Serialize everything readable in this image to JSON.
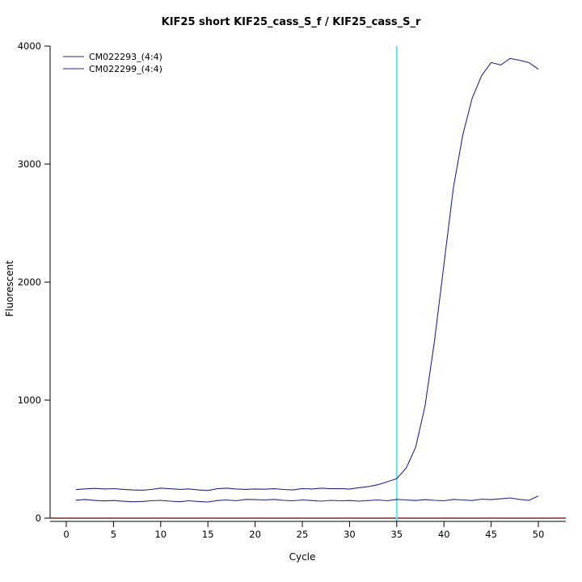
{
  "chart_data": {
    "type": "line",
    "title": "KIF25 short KIF25_cass_S_f / KIF25_cass_S_r",
    "xlabel": "Cycle",
    "ylabel": "Fluorescent",
    "xlim": [
      0,
      50
    ],
    "ylim": [
      0,
      4000
    ],
    "x_ticks": [
      0,
      5,
      10,
      15,
      20,
      25,
      30,
      35,
      40,
      45,
      50
    ],
    "y_ticks": [
      0,
      1000,
      2000,
      3000,
      4000
    ],
    "grid": false,
    "legend_position": "top-left",
    "threshold_line": {
      "y": 0,
      "color": "#8b2525"
    },
    "vline": {
      "x": 35,
      "color": "#63e3e3"
    },
    "axis_color": "#000000",
    "x": [
      1,
      2,
      3,
      4,
      5,
      6,
      7,
      8,
      9,
      10,
      11,
      12,
      13,
      14,
      15,
      16,
      17,
      18,
      19,
      20,
      21,
      22,
      23,
      24,
      25,
      26,
      27,
      28,
      29,
      30,
      31,
      32,
      33,
      34,
      35,
      36,
      37,
      38,
      39,
      40,
      41,
      42,
      43,
      44,
      45,
      46,
      47,
      48,
      49,
      50
    ],
    "series": [
      {
        "name": "CM022293_(4:4)",
        "color": "#27278b",
        "values": [
          242,
          248,
          252,
          247,
          250,
          244,
          239,
          237,
          243,
          254,
          249,
          244,
          247,
          239,
          234,
          249,
          254,
          247,
          244,
          247,
          245,
          249,
          243,
          239,
          251,
          247,
          254,
          249,
          251,
          247,
          258,
          268,
          283,
          308,
          335,
          425,
          600,
          950,
          1500,
          2150,
          2800,
          3250,
          3560,
          3750,
          3860,
          3840,
          3895,
          3880,
          3860,
          3805
        ]
      },
      {
        "name": "CM022299_(4:4)",
        "color": "#27278b",
        "values": [
          152,
          158,
          150,
          146,
          149,
          143,
          139,
          141,
          147,
          151,
          144,
          139,
          147,
          141,
          137,
          149,
          154,
          147,
          159,
          157,
          154,
          159,
          151,
          147,
          154,
          149,
          144,
          151,
          147,
          149,
          144,
          149,
          154,
          147,
          159,
          154,
          149,
          157,
          151,
          147,
          159,
          154,
          149,
          161,
          157,
          164,
          171,
          159,
          151,
          188
        ]
      }
    ]
  }
}
